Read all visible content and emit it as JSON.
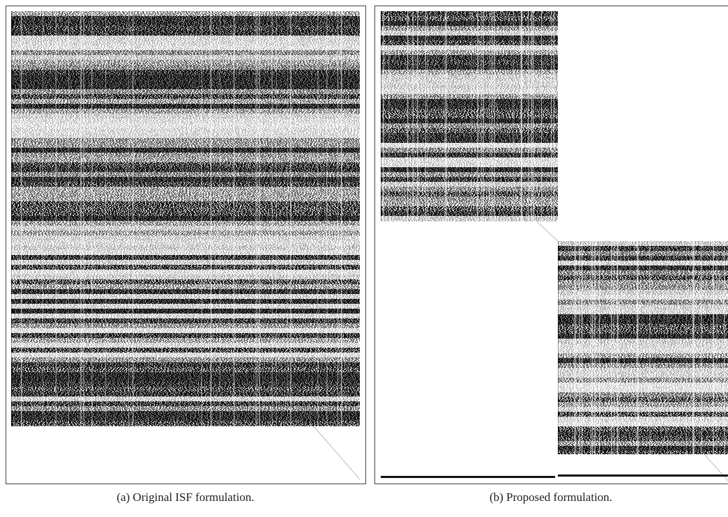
{
  "captions": {
    "a": "(a) Original ISF formulation.",
    "b": "(b) Proposed formulation."
  }
}
